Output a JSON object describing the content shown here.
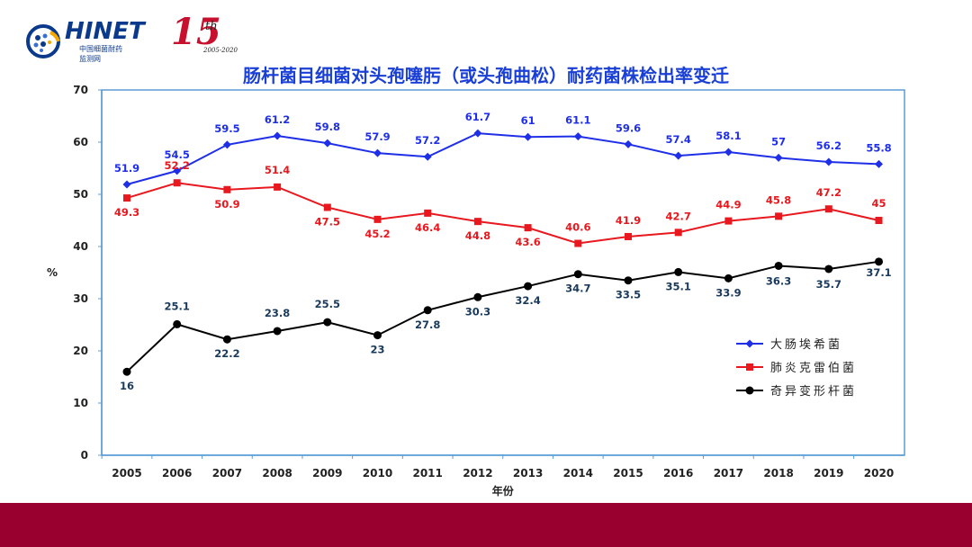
{
  "logo": {
    "name": "HINET",
    "sub1": "中国细菌耐药",
    "sub2": "监测网"
  },
  "anniversary": {
    "number": "15",
    "suffix": "th",
    "years": "2005-2020"
  },
  "colors": {
    "series1": "#1f2fe8",
    "series2": "#e8181e",
    "series3": "#000000",
    "footer": "#990030",
    "title": "#1a3fd6",
    "label_dark": "#1a3a5c"
  },
  "chart_data": {
    "type": "line",
    "title": "肠杆菌目细菌对头孢噻肟（或头孢曲松）耐药菌株检出率变迁",
    "xlabel": "年份",
    "ylabel": "%",
    "ylim": [
      0,
      70
    ],
    "yticks": [
      0,
      10,
      20,
      30,
      40,
      50,
      60,
      70
    ],
    "grid": false,
    "legend_position": "right",
    "x": [
      "2005",
      "2006",
      "2007",
      "2008",
      "2009",
      "2010",
      "2011",
      "2012",
      "2013",
      "2014",
      "2015",
      "2016",
      "2017",
      "2018",
      "2019",
      "2020"
    ],
    "series": [
      {
        "name": "大肠埃希菌",
        "marker": "diamond",
        "values": [
          51.9,
          54.5,
          59.5,
          61.2,
          59.8,
          57.9,
          57.2,
          61.7,
          61,
          61.1,
          59.6,
          57.4,
          58.1,
          57,
          56.2,
          55.8
        ]
      },
      {
        "name": "肺炎克雷伯菌",
        "marker": "square",
        "values": [
          49.3,
          52.2,
          50.9,
          51.4,
          47.5,
          45.2,
          46.4,
          44.8,
          43.6,
          40.6,
          41.9,
          42.7,
          44.9,
          45.8,
          47.2,
          45
        ]
      },
      {
        "name": "奇异变形杆菌",
        "marker": "circle",
        "values": [
          16,
          25.1,
          22.2,
          23.8,
          25.5,
          23,
          27.8,
          30.3,
          32.4,
          34.7,
          33.5,
          35.1,
          33.9,
          36.3,
          35.7,
          37.1
        ]
      }
    ]
  }
}
